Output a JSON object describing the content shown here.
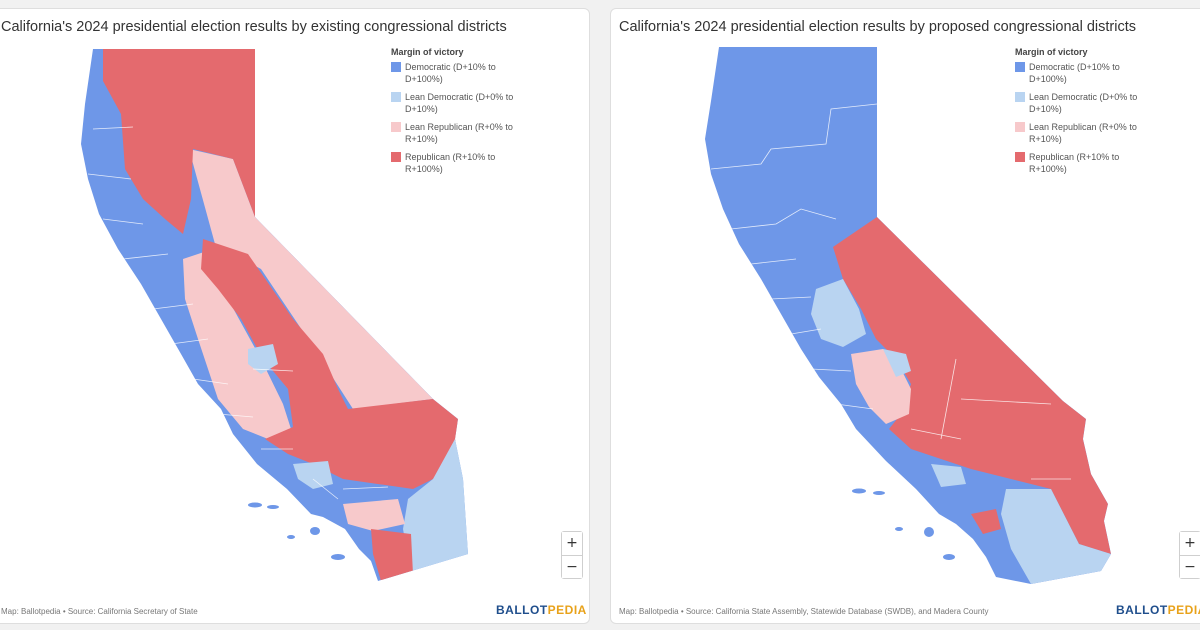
{
  "colors": {
    "democratic": "#6e97e8",
    "lean_democratic": "#b9d4f1",
    "lean_republican": "#f7c9cb",
    "republican": "#e46a6e"
  },
  "legend": {
    "title": "Margin of victory",
    "items": [
      {
        "label": "Democratic (D+10% to D+100%)",
        "color": "#6e97e8"
      },
      {
        "label": "Lean Democratic (D+0% to D+10%)",
        "color": "#b9d4f1"
      },
      {
        "label": "Lean Republican (R+0% to R+10%)",
        "color": "#f7c9cb"
      },
      {
        "label": "Republican (R+10% to R+100%)",
        "color": "#e46a6e"
      }
    ]
  },
  "left_map": {
    "title": "California's 2024 presidential election results by existing congressional districts",
    "credit": "Map: Ballotpedia • Source: California Secretary of State"
  },
  "right_map": {
    "title": "California's 2024 presidential election results by proposed congressional districts",
    "credit": "Map: Ballotpedia • Source: California State Assembly, Statewide Database (SWDB), and Madera County"
  },
  "zoom": {
    "in_label": "+",
    "out_label": "−"
  },
  "logo": {
    "part1": "BALLOT",
    "part2": "PEDIA"
  }
}
